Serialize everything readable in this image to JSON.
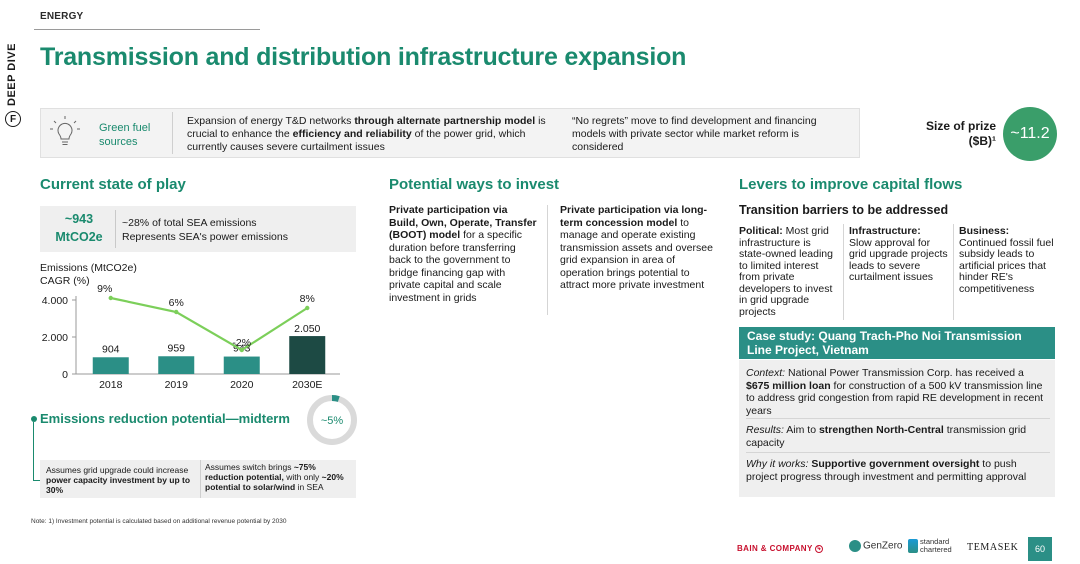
{
  "header": {
    "sector": "ENERGY",
    "deep_dive": "DEEP DIVE",
    "deep_dive_badge": "F",
    "title": "Transmission and distribution infrastructure expansion"
  },
  "banner": {
    "icon": "lightbulb-icon",
    "label": "Green fuel sources",
    "text1_a": "Expansion of energy T&D networks ",
    "text1_b": "through alternate partnership model",
    "text1_c": " is crucial to enhance the ",
    "text1_d": "efficiency and reliability",
    "text1_e": " of the power grid, which currently causes severe curtailment issues",
    "text2": "“No regrets” move to find development and financing models with private sector while market reform is considered"
  },
  "prize": {
    "label": "Size of prize ($B)¹",
    "value": "~11.2"
  },
  "current_state": {
    "heading": "Current state of play",
    "emissions_value": "~943 MtCO2e",
    "emissions_line1": "~28% of total SEA emissions",
    "emissions_line2": "Represents SEA's power emissions",
    "chart_label1": "Emissions (MtCO2e)",
    "chart_label2": "CAGR (%)"
  },
  "chart_data": {
    "type": "bar",
    "categories": [
      "2018",
      "2019",
      "2020",
      "2030E"
    ],
    "series": [
      {
        "values": [
          904,
          959,
          943,
          2050
        ]
      }
    ],
    "line_series": {
      "values": [
        9,
        6,
        -2,
        8
      ],
      "labels": [
        "9%",
        "6%",
        "-2%",
        "8%"
      ]
    },
    "bar_labels": [
      "904",
      "959",
      "943",
      "2.050"
    ],
    "yticks": [
      "4.000",
      "2.000",
      "0"
    ],
    "ylim": [
      0,
      4000
    ],
    "colors": {
      "bar": "#2b8f86",
      "bar_last": "#1d4a44",
      "line": "#7ccf5a"
    }
  },
  "emissions_reduction": {
    "title": "Emissions reduction potential—midterm",
    "donut_value": "~5%",
    "donut_fraction": 0.05,
    "box1_a": "Assumes grid upgrade could increase ",
    "box1_b": "power capacity investment by up to 30%",
    "box2_a": "Assumes switch brings ",
    "box2_b": "~75% reduction potential,",
    "box2_c": " with only ",
    "box2_d": "~20% potential to solar/wind",
    "box2_e": " in SEA"
  },
  "potential_ways": {
    "heading": "Potential ways to invest",
    "col1_bold": "Private participation via Build, Own, Operate, Transfer (BOOT) model",
    "col1_rest": " for a specific duration before transferring back to the government to bridge financing gap with private capital and scale investment in grids",
    "col2_bold": "Private participation via long-term concession model",
    "col2_rest": " to manage and operate existing transmission assets and oversee grid expansion in area of operation brings potential to attract more private investment"
  },
  "levers": {
    "heading": "Levers to improve capital flows",
    "subheading": "Transition barriers to be addressed",
    "political_label": "Political:",
    "political_text": " Most grid infrastructure is state-owned leading to limited interest from private developers to invest in grid upgrade projects",
    "infra_label": "Infrastructure:",
    "infra_text": "Slow approval for grid upgrade projects leads to severe curtailment issues",
    "business_label": "Business:",
    "business_text": "Continued fossil fuel subsidy leads to artificial prices that hinder RE's competitiveness"
  },
  "case_study": {
    "title": "Case study: Quang Trach-Pho Noi Transmission Line Project, Vietnam",
    "context_label": "Context:",
    "context_a": " National Power Transmission Corp. has received a ",
    "context_b": "$675 million loan",
    "context_c": " for construction of a 500 kV transmission line to address grid congestion from rapid RE development in recent years",
    "results_label": "Results:",
    "results_a": " Aim to ",
    "results_b": "strengthen North-Central",
    "results_c": " transmission grid capacity",
    "why_label": "Why it works:",
    "why_a": " ",
    "why_b": "Supportive government oversight",
    "why_c": " to push project progress through investment and permitting approval"
  },
  "note": "Note: 1) Investment potential is calculated based on additional revenue potential by 2030",
  "footer": {
    "bain": "BAIN & COMPANY",
    "genzero": "GenZero",
    "sc_line1": "standard",
    "sc_line2": "chartered",
    "temasek": "TEMASEK",
    "page": "60"
  }
}
